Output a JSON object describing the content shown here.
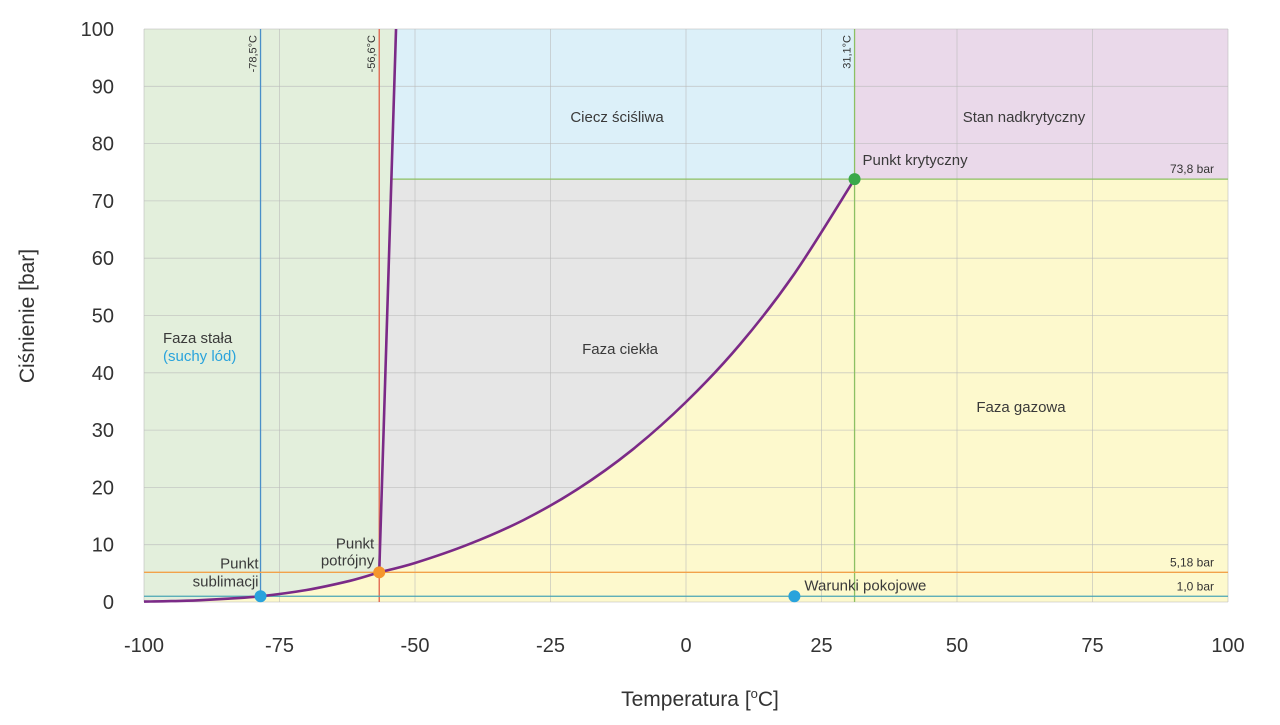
{
  "chart_data": {
    "type": "line",
    "xlabel": "Temperatura [°C]",
    "xlabel_main": "Temperatura [",
    "xlabel_sup": "o",
    "xlabel_end": "C]",
    "ylabel": "Ciśnienie [bar]",
    "xlim": [
      -100,
      100
    ],
    "ylim": [
      0,
      100
    ],
    "x_ticks": [
      -100,
      -75,
      -50,
      -25,
      0,
      25,
      50,
      75,
      100
    ],
    "y_ticks": [
      0,
      10,
      20,
      30,
      40,
      50,
      60,
      70,
      80,
      90,
      100
    ],
    "x_tick_labels": [
      "-100",
      "-75",
      "-50",
      "-25",
      "0",
      "25",
      "50",
      "75",
      "100"
    ],
    "y_tick_labels": [
      "0",
      "10",
      "20",
      "30",
      "40",
      "50",
      "60",
      "70",
      "80",
      "90",
      "100"
    ],
    "grid": true,
    "regions": [
      {
        "name": "solid",
        "label": "Faza stała",
        "sublabel": "(suchy lód)",
        "color": "#e3efdc"
      },
      {
        "name": "liquid",
        "label": "Faza ciekła",
        "color": "#e6e6e6"
      },
      {
        "name": "gas",
        "label": "Faza gazowa",
        "color": "#fdf9cd"
      },
      {
        "name": "compressible-liquid",
        "label": "Ciecz ściśliwa",
        "color": "#dcf0f9"
      },
      {
        "name": "supercritical",
        "label": "Stan nadkrytyczny",
        "color": "#ead9ea"
      }
    ],
    "sublimation_curve": {
      "color": "#7b2a87",
      "points": [
        [
          -100,
          0.07
        ],
        [
          -95,
          0.15
        ],
        [
          -90,
          0.3
        ],
        [
          -85,
          0.55
        ],
        [
          -78.5,
          1.0
        ],
        [
          -70,
          2.1
        ],
        [
          -62,
          3.7
        ],
        [
          -56.6,
          5.18
        ]
      ]
    },
    "vaporization_curve": {
      "color": "#7b2a87",
      "points": [
        [
          -56.6,
          5.18
        ],
        [
          -50,
          6.8
        ],
        [
          -40,
          10.1
        ],
        [
          -30,
          14.3
        ],
        [
          -20,
          19.7
        ],
        [
          -10,
          26.5
        ],
        [
          0,
          34.9
        ],
        [
          10,
          45.0
        ],
        [
          20,
          57.3
        ],
        [
          31.1,
          73.8
        ]
      ]
    },
    "melting_curve": {
      "color": "#7b2a87",
      "points": [
        [
          -56.6,
          5.18
        ],
        [
          -53.5,
          100
        ]
      ]
    },
    "reference_lines": {
      "vertical": [
        {
          "x": -78.5,
          "label": "-78,5°C",
          "color": "#4a8fc9"
        },
        {
          "x": -56.6,
          "label": "-56,6°C",
          "color": "#e0604a"
        },
        {
          "x": 31.1,
          "label": "31,1°C",
          "color": "#8cc063"
        }
      ],
      "horizontal": [
        {
          "y": 73.8,
          "label": "73,8 bar",
          "color": "#8cc063"
        },
        {
          "y": 5.18,
          "label": "5,18 bar",
          "color": "#f2a24a"
        },
        {
          "y": 1.0,
          "label": "1,0 bar",
          "color": "#4aa6b4"
        }
      ]
    },
    "points": [
      {
        "name": "sublimation-point",
        "x": -78.5,
        "y": 1.0,
        "label_line1": "Punkt",
        "label_line2": "sublimacji",
        "color": "#29a3dc"
      },
      {
        "name": "triple-point",
        "x": -56.6,
        "y": 5.18,
        "label_line1": "Punkt",
        "label_line2": "potrójny",
        "color": "#f5962c"
      },
      {
        "name": "critical-point",
        "x": 31.1,
        "y": 73.8,
        "label_line1": "Punkt krytyczny",
        "label_line2": "",
        "color": "#3aa84a"
      },
      {
        "name": "room-conditions",
        "x": 20,
        "y": 1.0,
        "label_line1": "Warunki pokojowe",
        "label_line2": "",
        "color": "#29a3dc"
      }
    ]
  }
}
